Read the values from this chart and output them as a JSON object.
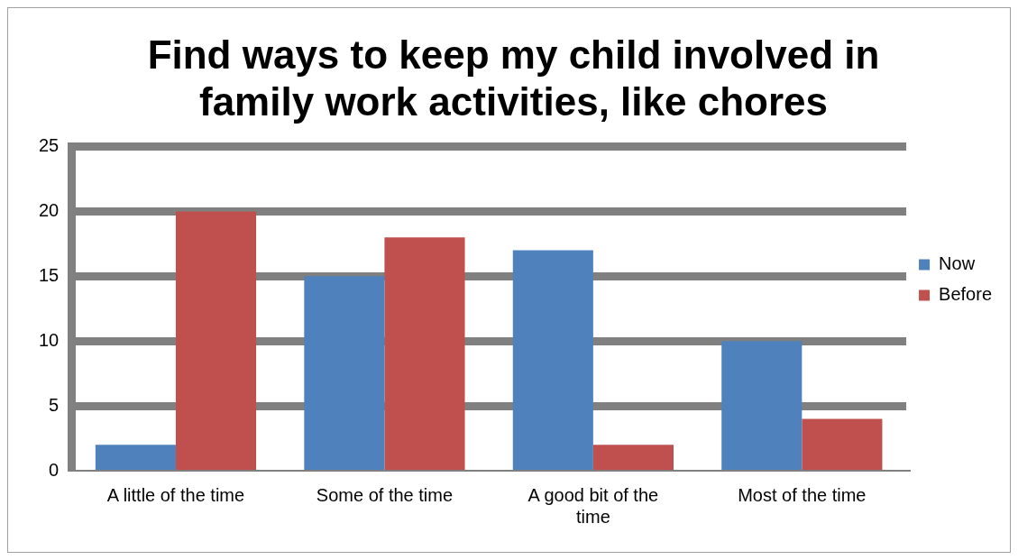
{
  "chart_data": {
    "type": "bar",
    "title": "Find ways to keep my child involved in family work activities, like chores",
    "categories": [
      "A little of the time",
      "Some of the time",
      "A good bit of the time",
      "Most of the time"
    ],
    "series": [
      {
        "name": "Now",
        "color": "#4f81bd",
        "values": [
          2,
          15,
          17,
          10
        ]
      },
      {
        "name": "Before",
        "color": "#c0504d",
        "values": [
          20,
          18,
          2,
          4
        ]
      }
    ],
    "ylim": [
      0,
      25
    ],
    "yticks": [
      0,
      5,
      10,
      15,
      20,
      25
    ],
    "grid": "y",
    "legend": "right"
  }
}
